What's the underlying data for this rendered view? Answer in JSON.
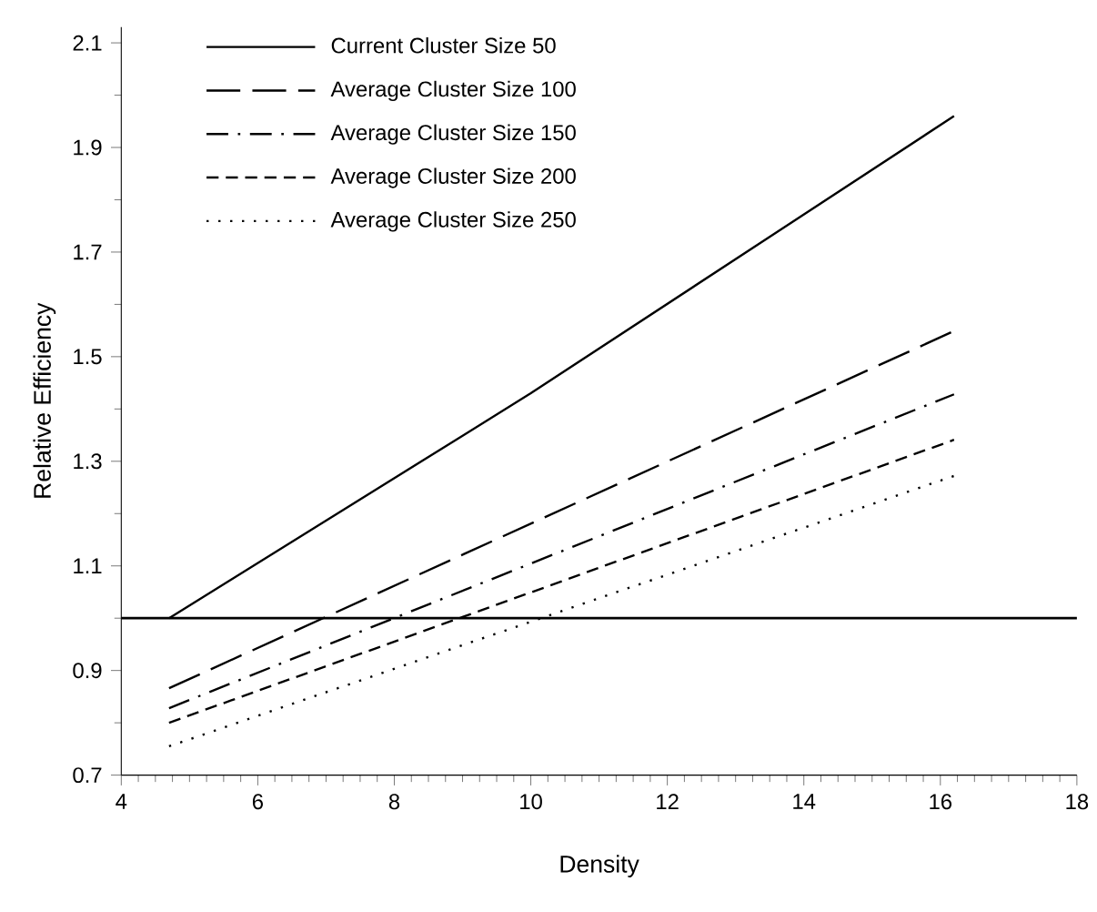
{
  "chart_data": {
    "type": "line",
    "xlabel": "Density",
    "ylabel": "Relative Efficiency",
    "x": [
      4.7,
      10,
      16.2
    ],
    "series": [
      {
        "name": "Current Cluster Size 50",
        "color": "#000000",
        "line_style": "solid",
        "values": [
          1.0,
          1.43,
          1.96
        ]
      },
      {
        "name": "Average Cluster Size 100",
        "color": "#000000",
        "line_style": "dashed",
        "values": [
          0.866,
          null,
          1.549
        ]
      },
      {
        "name": "Average Cluster Size 150",
        "color": "#000000",
        "line_style": "dashed",
        "values": [
          0.828,
          null,
          1.428
        ]
      },
      {
        "name": "Average Cluster Size 200",
        "color": "#000000",
        "line_style": "dashed",
        "values": [
          0.8,
          null,
          1.341
        ]
      },
      {
        "name": "Average Cluster Size 250",
        "color": "#000000",
        "line_style": "dotted",
        "values": [
          0.755,
          null,
          1.272
        ]
      }
    ],
    "xlim": [
      4,
      18
    ],
    "xticks": [
      4,
      6,
      8,
      10,
      12,
      14,
      16,
      18
    ],
    "ylim": [
      0.7,
      2.13
    ],
    "yticks": [
      0.7,
      0.9,
      1.1,
      1.3,
      1.5,
      1.7,
      1.9,
      2.1
    ],
    "ref_lines": [
      {
        "axis": "y",
        "value": 1.0,
        "color": "#000000",
        "line_style": "solid"
      }
    ],
    "grid": false,
    "legend": "top left",
    "marker": "none"
  }
}
